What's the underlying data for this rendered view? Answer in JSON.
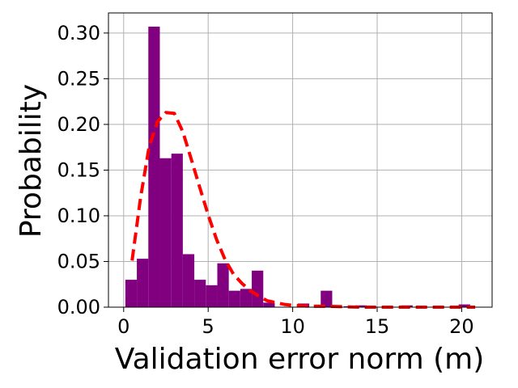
{
  "chart_data": {
    "type": "bar",
    "title": "",
    "xlabel": "Validation error norm (m)",
    "ylabel": "Probability",
    "xlim": [
      -0.9,
      21.8
    ],
    "ylim": [
      0,
      0.322
    ],
    "x_ticks": [
      0,
      5,
      10,
      15,
      20
    ],
    "y_ticks": [
      0.0,
      0.05,
      0.1,
      0.15,
      0.2,
      0.25,
      0.3
    ],
    "x_tick_labels": [
      "0",
      "5",
      "10",
      "15",
      "20"
    ],
    "y_tick_labels": [
      "0.00",
      "0.05",
      "0.10",
      "0.15",
      "0.20",
      "0.25",
      "0.30"
    ],
    "grid": true,
    "legend": "none",
    "bin_width": 0.68,
    "bins": [
      {
        "x_start": 0.1,
        "value": 0.03
      },
      {
        "x_start": 0.78,
        "value": 0.053
      },
      {
        "x_start": 1.46,
        "value": 0.307
      },
      {
        "x_start": 2.14,
        "value": 0.163
      },
      {
        "x_start": 2.82,
        "value": 0.168
      },
      {
        "x_start": 3.5,
        "value": 0.058
      },
      {
        "x_start": 4.18,
        "value": 0.03
      },
      {
        "x_start": 4.86,
        "value": 0.024
      },
      {
        "x_start": 5.54,
        "value": 0.048
      },
      {
        "x_start": 6.22,
        "value": 0.018
      },
      {
        "x_start": 6.9,
        "value": 0.02
      },
      {
        "x_start": 7.58,
        "value": 0.04
      },
      {
        "x_start": 8.26,
        "value": 0.005
      },
      {
        "x_start": 8.94,
        "value": 0.0
      },
      {
        "x_start": 9.62,
        "value": 0.0
      },
      {
        "x_start": 10.3,
        "value": 0.004
      },
      {
        "x_start": 10.98,
        "value": 0.0
      },
      {
        "x_start": 11.66,
        "value": 0.018
      },
      {
        "x_start": 12.34,
        "value": 0.0
      },
      {
        "x_start": 13.02,
        "value": 0.001
      },
      {
        "x_start": 13.7,
        "value": 0.002
      },
      {
        "x_start": 14.38,
        "value": 0.0
      },
      {
        "x_start": 15.06,
        "value": 0.0
      },
      {
        "x_start": 15.74,
        "value": 0.0
      },
      {
        "x_start": 16.42,
        "value": 0.002
      },
      {
        "x_start": 17.1,
        "value": 0.0
      },
      {
        "x_start": 17.78,
        "value": 0.0
      },
      {
        "x_start": 18.46,
        "value": 0.0
      },
      {
        "x_start": 19.14,
        "value": 0.0
      },
      {
        "x_start": 19.82,
        "value": 0.003
      }
    ],
    "fit_curve": {
      "style": "dashed",
      "points": [
        [
          0.5,
          0.051
        ],
        [
          1.0,
          0.12
        ],
        [
          1.5,
          0.175
        ],
        [
          2.0,
          0.203
        ],
        [
          2.5,
          0.213
        ],
        [
          3.0,
          0.212
        ],
        [
          3.5,
          0.192
        ],
        [
          4.0,
          0.162
        ],
        [
          4.5,
          0.131
        ],
        [
          5.0,
          0.101
        ],
        [
          5.5,
          0.074
        ],
        [
          6.0,
          0.052
        ],
        [
          6.5,
          0.036
        ],
        [
          7.0,
          0.026
        ],
        [
          7.5,
          0.018
        ],
        [
          8.0,
          0.012
        ],
        [
          8.5,
          0.007
        ],
        [
          9.0,
          0.005
        ],
        [
          9.5,
          0.003
        ],
        [
          10.0,
          0.002
        ],
        [
          11.0,
          0.001
        ],
        [
          12.0,
          0.001
        ],
        [
          14.0,
          0.0
        ],
        [
          16.0,
          0.0
        ],
        [
          18.0,
          0.0
        ],
        [
          20.0,
          0.0
        ],
        [
          20.8,
          0.0
        ]
      ]
    },
    "colors": {
      "bars": "#800080",
      "fit_curve": "#ff0000",
      "grid": "#b0b0b0",
      "axes": "#000000"
    }
  }
}
